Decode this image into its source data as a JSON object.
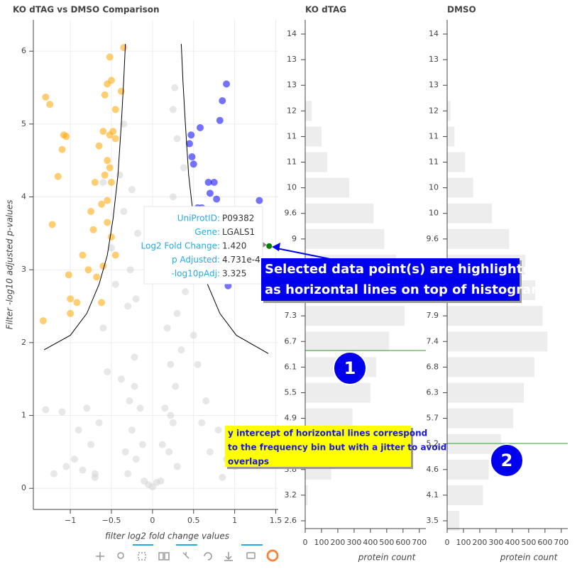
{
  "chart_data": [
    {
      "type": "scatter",
      "title": "KO dTAG vs DMSO Comparison",
      "x_label": "filter log2 fold change values",
      "y_label": "Filter -log10 adjusted p-values",
      "xlim": [
        -1.45,
        1.53
      ],
      "ylim": [
        -0.29,
        6.43
      ],
      "xticks": [
        {
          "value": -1,
          "label": "−1"
        },
        {
          "value": -0.5,
          "label": "−0.5"
        },
        0,
        0.5,
        1,
        1.5
      ],
      "yticks": [
        0,
        1,
        2,
        3,
        4,
        5,
        6
      ],
      "grid": true,
      "series": [
        {
          "color": "#d3d3d3",
          "x": [
            -1.2,
            -1.1,
            -1.05,
            -0.95,
            -0.9,
            -0.85,
            -0.8,
            -0.75,
            -0.7,
            -0.65,
            -0.6,
            -0.55,
            -0.5,
            -0.45,
            -0.4,
            -0.38,
            -0.35,
            -0.33,
            -0.3,
            -0.3,
            -0.28,
            -0.27,
            -0.25,
            -0.25,
            -0.22,
            -0.2,
            -0.2,
            -0.18,
            -0.15,
            -0.12,
            -0.1,
            -0.05,
            0,
            0.05,
            0.1,
            0.12,
            0.15,
            0.18,
            0.2,
            0.2,
            0.22,
            0.25,
            0.25,
            0.27,
            0.28,
            0.3,
            0.3,
            0.33,
            0.35,
            0.38,
            0.4,
            0.45,
            0.5,
            0.55,
            0.6,
            0.65,
            0.7,
            0.8,
            0.9,
            1.0,
            -0.6,
            -0.35,
            0.3,
            0.25,
            -1.3,
            0.85,
            -0.7,
            0.27,
            -0.22,
            0.22
          ],
          "values": [
            0.2,
            1.05,
            0.3,
            0.4,
            0.8,
            0.25,
            1.1,
            0.6,
            0.15,
            0.9,
            2.2,
            1.6,
            3.3,
            2.8,
            4.3,
            1.5,
            3.8,
            0.5,
            2.5,
            0.2,
            1.2,
            3.0,
            0.8,
            4.1,
            1.8,
            2.6,
            0.4,
            3.5,
            1.1,
            0.6,
            0.1,
            0.05,
            0.02,
            0.08,
            0.1,
            0.6,
            1.1,
            2.2,
            0.5,
            3.1,
            1.7,
            0.9,
            4.0,
            2.9,
            1.4,
            2.4,
            0.3,
            3.6,
            1.9,
            4.4,
            2.7,
            3.2,
            2.1,
            1.7,
            0.9,
            1.2,
            0.5,
            0.8,
            0.4,
            0.3,
            4.2,
            5.0,
            4.8,
            5.2,
            1.08,
            0.15,
            0.2,
            5.5,
            1.4,
            1.0
          ]
        },
        {
          "color": "#ffa500",
          "x": [
            -1.33,
            -1.22,
            -1.3,
            -1.25,
            -1.15,
            -1.1,
            -1.08,
            -1.05,
            -1.0,
            -1.02,
            -0.92,
            -0.85,
            -0.78,
            -0.75,
            -0.7,
            -0.65,
            -0.6,
            -0.58,
            -0.55,
            -0.5,
            -0.45,
            -0.38,
            -0.52,
            -0.35,
            -0.48,
            -0.52,
            -0.55,
            -0.5,
            -0.45,
            -0.6,
            -0.62,
            -0.72,
            -0.58,
            -0.5,
            -0.55,
            -0.52,
            -0.45,
            -1.0,
            -0.55,
            -0.62,
            -0.68
          ],
          "values": [
            2.3,
            3.62,
            5.37,
            5.27,
            4.28,
            4.65,
            4.85,
            4.83,
            2.4,
            2.93,
            2.55,
            3.2,
            3.0,
            3.8,
            4.2,
            4.7,
            4.9,
            5.4,
            5.55,
            5.6,
            5.2,
            5.45,
            5.92,
            6.05,
            4.9,
            4.4,
            3.65,
            3.45,
            3.2,
            3.05,
            2.55,
            3.55,
            4.3,
            4.2,
            4.5,
            4.85,
            4.8,
            2.6,
            3.95,
            3.9,
            2.9
          ]
        },
        {
          "color": "#0000ff",
          "x": [
            0.9,
            0.85,
            0.82,
            0.58,
            0.47,
            0.45,
            0.48,
            0.5,
            0.7,
            0.68,
            0.75,
            0.78,
            0.6,
            0.55,
            0.62,
            1.3,
            0.92,
            0.82,
            0.7
          ],
          "values": [
            5.55,
            5.32,
            5.05,
            4.95,
            4.85,
            4.73,
            4.55,
            4.45,
            4.05,
            4.2,
            4.2,
            3.97,
            3.85,
            3.85,
            3.7,
            3.95,
            2.78,
            3.05,
            3.35
          ]
        },
        {
          "color": "#008000",
          "x": [
            1.42
          ],
          "values": [
            3.325
          ]
        }
      ],
      "curves": [
        {
          "color": "#000000",
          "x": [
            -1.32,
            -1.0,
            -0.8,
            -0.65,
            -0.55,
            -0.48,
            -0.42,
            -0.38,
            -0.35,
            -0.33
          ],
          "values": [
            1.9,
            2.1,
            2.4,
            2.8,
            3.2,
            3.7,
            4.3,
            5.0,
            5.6,
            6.1
          ]
        },
        {
          "color": "#000000",
          "x": [
            0.35,
            0.37,
            0.4,
            0.44,
            0.5,
            0.57,
            0.67,
            0.82,
            1.02,
            1.41
          ],
          "values": [
            6.1,
            5.6,
            5.0,
            4.3,
            3.7,
            3.2,
            2.8,
            2.4,
            2.1,
            1.85
          ]
        }
      ]
    },
    {
      "type": "hbar",
      "title": "KO dTAG",
      "x_label": "protein count",
      "color": "#ededed",
      "categories": [
        "14",
        "13",
        "13",
        "12",
        "11",
        "11",
        "10",
        "9.6",
        "9",
        null,
        null,
        "7.3",
        "6.7",
        "6.1",
        "5.5",
        "4.9",
        null,
        "3.8",
        "3.2",
        "2.6"
      ],
      "values": [
        0,
        0,
        0,
        40,
        100,
        135,
        270,
        420,
        485,
        560,
        630,
        610,
        515,
        435,
        400,
        290,
        215,
        160,
        15,
        0
      ],
      "xlim": [
        0,
        740
      ],
      "xticks": [
        0,
        100,
        200,
        300,
        400,
        500,
        600,
        700
      ]
    },
    {
      "type": "hbar",
      "title": "DMSO",
      "x_label": "protein count",
      "color": "#ededed",
      "categories": [
        "14",
        "13",
        "13",
        "12",
        "11",
        "11",
        "10",
        "10",
        "9.6",
        null,
        null,
        "7.9",
        "7.4",
        "6.8",
        "6.3",
        "5.7",
        "5.2",
        "4.6",
        "4.1",
        "3.5"
      ],
      "values": [
        0,
        0,
        0,
        20,
        45,
        110,
        160,
        275,
        380,
        480,
        540,
        585,
        615,
        535,
        470,
        405,
        330,
        255,
        220,
        75
      ],
      "xlim": [
        0,
        740
      ],
      "xticks": [
        0,
        100,
        200,
        300,
        400,
        500,
        600,
        700
      ]
    }
  ],
  "tooltip": {
    "rows": [
      {
        "label": "UniProtID:",
        "value": "P09382"
      },
      {
        "label": "Gene:",
        "value": "LGALS1"
      },
      {
        "label": "Log2 Fold Change:",
        "value": "1.420"
      },
      {
        "label": "p Adjusted:",
        "value": "4.731e-4"
      },
      {
        "label": "-log10pAdj:",
        "value": "3.325"
      }
    ]
  },
  "annotations": {
    "callout": [
      "Selected data point(s) are highlighted",
      "as horizontal lines on top of histogram"
    ],
    "note": [
      "y intercept of horizontal lines correspond",
      "to the frequency bin but with a jitter to avoid",
      "overlaps"
    ],
    "badges": [
      "1",
      "2"
    ]
  }
}
